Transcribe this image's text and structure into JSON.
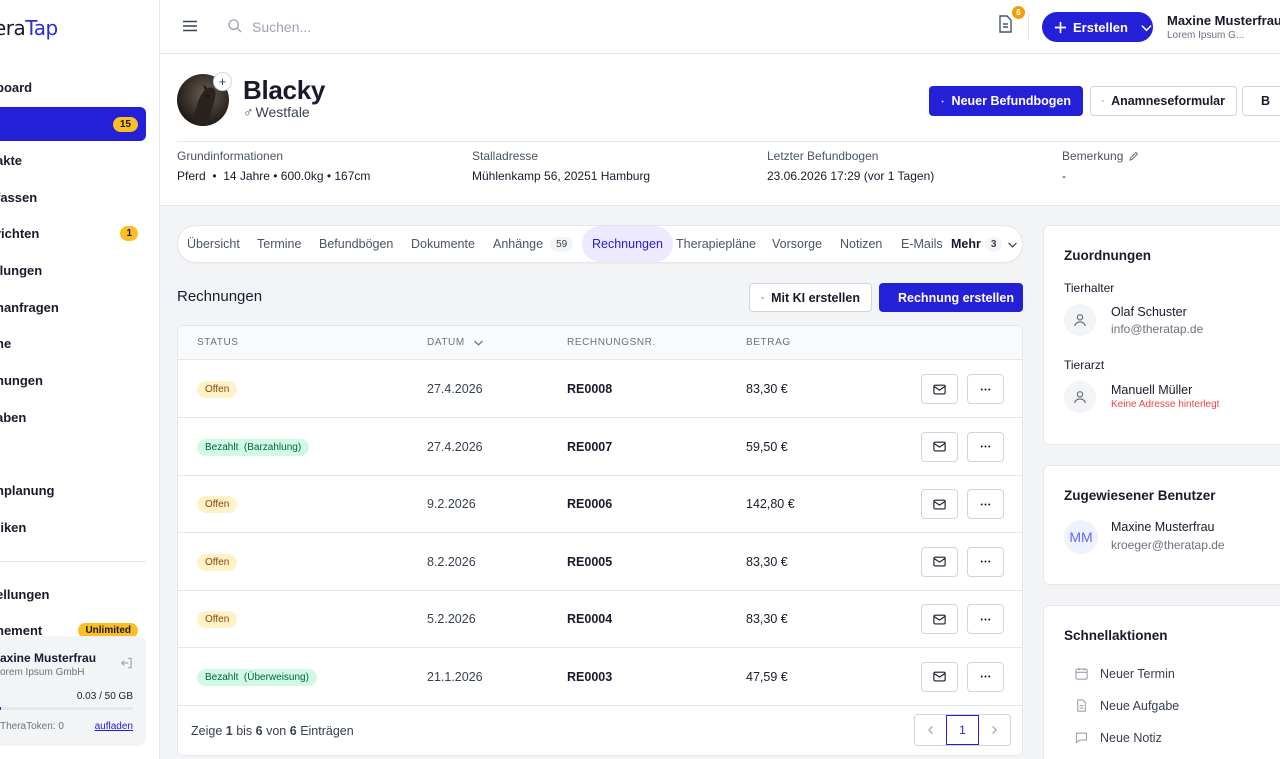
{
  "app": {
    "logo_part1": "era",
    "logo_part2": "Tap"
  },
  "sidebar": {
    "items": [
      {
        "label": "board"
      },
      {
        "label": "",
        "badge": "15"
      },
      {
        "label": "akte"
      },
      {
        "label": "fassen"
      },
      {
        "label": "richten",
        "badge": "1"
      },
      {
        "label": "ilungen"
      },
      {
        "label": "nanfragen"
      },
      {
        "label": "ne"
      },
      {
        "label": "nungen"
      },
      {
        "label": "aben"
      },
      {
        "label": "nplanung"
      },
      {
        "label": "tiken"
      },
      {
        "label": "ellungen"
      },
      {
        "label": "nement",
        "badge": "Unlimited"
      }
    ],
    "user_card": {
      "name": "axine Musterfrau",
      "company": "orem Ipsum GmbH",
      "storage": "0.03 / 50 GB",
      "storage_fraction": 0.0006,
      "token": "TheraToken: 0",
      "upload_link": "aufladen"
    }
  },
  "topbar": {
    "search": {
      "placeholder": "Suchen..."
    },
    "doc_badge": "6",
    "create_label": "Erstellen",
    "user_name": "Maxine Musterfrau",
    "user_company": "Lorem Ipsum G..."
  },
  "horse": {
    "name": "Blacky",
    "breed": "Westfale",
    "gender_symbol": "♂",
    "add_symbol": "+"
  },
  "header_actions": {
    "new_finding": "Neuer Befundbogen",
    "anamnesis": "Anamneseformular",
    "edit": "B"
  },
  "info": {
    "basic": {
      "label": "Grundinformationen",
      "value": "Pferd  •  14 Jahre • 600.0kg • 167cm"
    },
    "stable": {
      "label": "Stalladresse",
      "value": "Mühlenkamp 56, 20251 Hamburg"
    },
    "last_finding": {
      "label": "Letzter Befundbogen",
      "value": "23.06.2026 17:29 (vor 1 Tagen)"
    },
    "remark": {
      "label": "Bemerkung",
      "value": "-"
    }
  },
  "tabs": [
    {
      "label": "Übersicht"
    },
    {
      "label": "Termine"
    },
    {
      "label": "Befundbögen"
    },
    {
      "label": "Dokumente"
    },
    {
      "label": "Anhänge",
      "count": "59"
    },
    {
      "label": "Rechnungen",
      "active": true
    },
    {
      "label": "Therapiepläne"
    },
    {
      "label": "Vorsorge"
    },
    {
      "label": "Notizen"
    },
    {
      "label": "E-Mails"
    },
    {
      "label": "Mehr",
      "count": "3"
    }
  ],
  "invoices": {
    "title": "Rechnungen",
    "ai_button": "Mit KI erstellen",
    "create_button": "Rechnung erstellen",
    "columns": {
      "status": "STATUS",
      "date": "DATUM",
      "number": "RECHNUNGSNR.",
      "amount": "BETRAG"
    },
    "rows": [
      {
        "status": "Offen",
        "status_type": "open",
        "date": "27.4.2026",
        "number": "RE0008",
        "amount": "83,30 €"
      },
      {
        "status": "Bezahlt  (Barzahlung)",
        "status_type": "paid",
        "date": "27.4.2026",
        "number": "RE0007",
        "amount": "59,50 €"
      },
      {
        "status": "Offen",
        "status_type": "open",
        "date": "9.2.2026",
        "number": "RE0006",
        "amount": "142,80 €"
      },
      {
        "status": "Offen",
        "status_type": "open",
        "date": "8.2.2026",
        "number": "RE0005",
        "amount": "83,30 €"
      },
      {
        "status": "Offen",
        "status_type": "open",
        "date": "5.2.2026",
        "number": "RE0004",
        "amount": "83,30 €"
      },
      {
        "status": "Bezahlt  (Überweisung)",
        "status_type": "paid",
        "date": "21.1.2026",
        "number": "RE0003",
        "amount": "47,59 €"
      }
    ],
    "pagination": {
      "prefix": "Zeige",
      "from": "1",
      "mid1": "bis",
      "to": "6",
      "mid2": "von",
      "total": "6",
      "suffix": "Einträgen",
      "current_page": "1"
    }
  },
  "assignments": {
    "title": "Zuordnungen",
    "owner_label": "Tierhalter",
    "owner_name": "Olaf Schuster",
    "owner_email": "info@theratap.de",
    "vet_label": "Tierarzt",
    "vet_name": "Manuell Müller",
    "vet_warning": "Keine Adresse hinterlegt"
  },
  "assigned_user": {
    "title": "Zugewiesener Benutzer",
    "initials": "MM",
    "name": "Maxine Musterfrau",
    "email": "kroeger@theratap.de"
  },
  "quick_actions": {
    "title": "Schnellaktionen",
    "items": [
      {
        "label": "Neuer Termin",
        "icon": "calendar-icon"
      },
      {
        "label": "Neue Aufgabe",
        "icon": "document-icon"
      },
      {
        "label": "Neue Notiz",
        "icon": "comment-icon"
      }
    ]
  },
  "colors": {
    "primary": "#2420d8",
    "badge": "#fbbf24",
    "open": "#fef3c7",
    "paid": "#d1fae5",
    "warning": "#ef4444"
  }
}
